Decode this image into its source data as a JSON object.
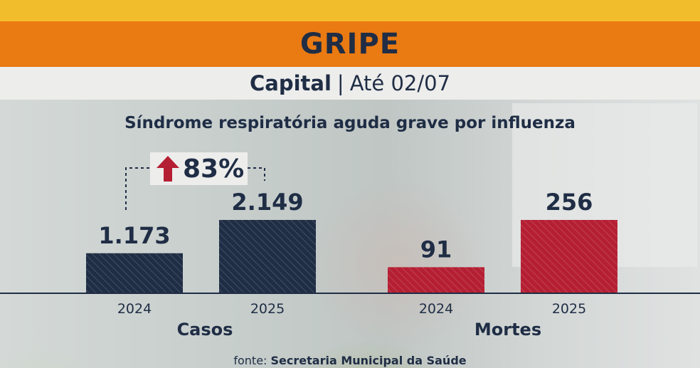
{
  "header": {
    "title": "GRIPE",
    "subtitle_bold": "Capital",
    "subtitle_sep": "|",
    "subtitle_rest": "Até 02/07"
  },
  "growth_badge": {
    "text": "83%",
    "icon": "arrow-up-icon"
  },
  "source": {
    "prefix": "fonte:",
    "name": "Secretaria Municipal da Saúde"
  },
  "colors": {
    "casos": "#1f2d45",
    "mortes": "#b51f33",
    "title_bar": "#ea7a12",
    "top_strip": "#f2bd2c"
  },
  "chart_data": {
    "type": "bar",
    "title": "Síndrome respiratória aguda grave por influenza",
    "groups": [
      {
        "name": "Casos",
        "bars": [
          {
            "year": "2024",
            "value": 1173,
            "label": "1.173"
          },
          {
            "year": "2025",
            "value": 2149,
            "label": "2.149"
          }
        ]
      },
      {
        "name": "Mortes",
        "bars": [
          {
            "year": "2024",
            "value": 91,
            "label": "91"
          },
          {
            "year": "2025",
            "value": 256,
            "label": "256"
          }
        ]
      }
    ],
    "grid": false,
    "legend": "none"
  }
}
